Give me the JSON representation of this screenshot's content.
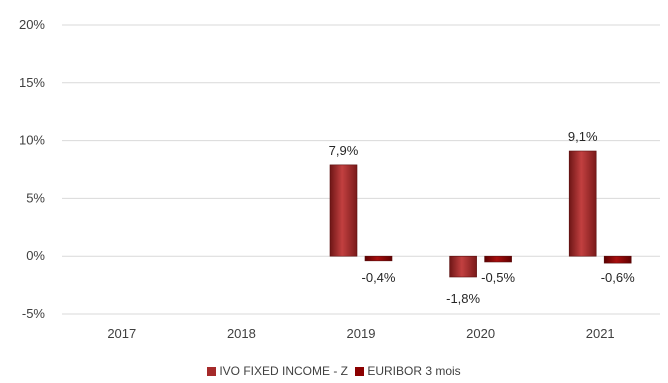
{
  "chart_data": {
    "type": "bar",
    "title": "",
    "xlabel": "",
    "ylabel": "",
    "categories": [
      "2017",
      "2018",
      "2019",
      "2020",
      "2021"
    ],
    "ylim": [
      -5,
      20
    ],
    "yticks": [
      -5,
      0,
      5,
      10,
      15,
      20
    ],
    "ytick_labels": [
      "-5%",
      "0%",
      "5%",
      "10%",
      "15%",
      "20%"
    ],
    "grid": true,
    "legend_position": "bottom",
    "series": [
      {
        "name": "IVO FIXED INCOME - Z",
        "color": "#a52a2a",
        "values": [
          null,
          null,
          7.9,
          -1.8,
          9.1
        ],
        "labels": [
          "",
          "",
          "7,9%",
          "-1,8%",
          "9,1%"
        ]
      },
      {
        "name": "EURIBOR 3 mois",
        "color": "#8b0000",
        "values": [
          null,
          null,
          -0.4,
          -0.5,
          -0.6
        ],
        "labels": [
          "",
          "",
          "-0,4%",
          "-0,5%",
          "-0,6%"
        ]
      }
    ]
  }
}
